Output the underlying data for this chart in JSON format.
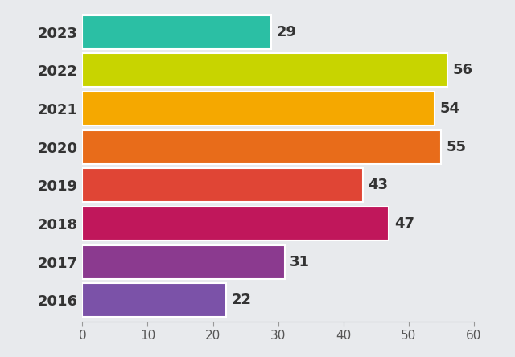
{
  "years": [
    "2016",
    "2017",
    "2018",
    "2019",
    "2020",
    "2021",
    "2022",
    "2023"
  ],
  "values": [
    22,
    31,
    47,
    43,
    55,
    54,
    56,
    29
  ],
  "bar_colors": [
    "#7b52a8",
    "#8b3a8f",
    "#c0175b",
    "#e04535",
    "#e86c1a",
    "#f5a800",
    "#c8d400",
    "#2bbfa4"
  ],
  "xlim": [
    0,
    60
  ],
  "xticks": [
    0,
    10,
    20,
    30,
    40,
    50,
    60
  ],
  "background_color": "#e8eaed",
  "label_fontsize": 13,
  "value_fontsize": 13,
  "tick_fontsize": 11,
  "bar_height": 0.88,
  "figsize": [
    6.4,
    4.44
  ],
  "dpi": 100
}
